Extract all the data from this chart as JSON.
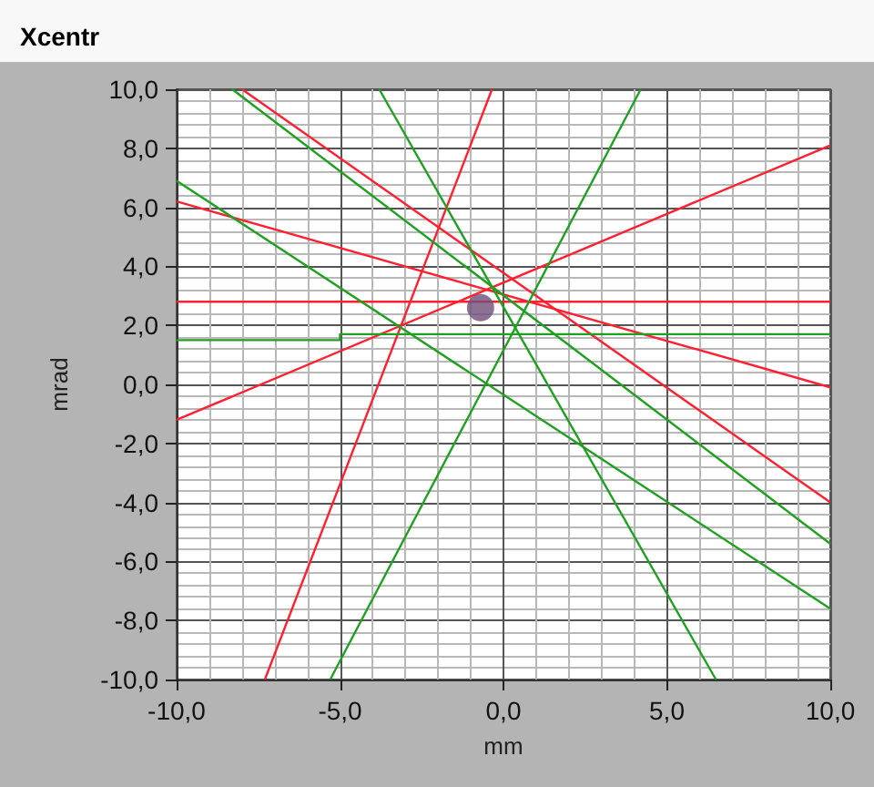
{
  "chart_data": {
    "type": "line",
    "title": "Xcentr",
    "xlabel": "mm",
    "ylabel": "mrad",
    "xlim": [
      -10,
      10
    ],
    "ylim": [
      -10,
      10
    ],
    "xticks": [
      {
        "value": -10,
        "label": "-10,0"
      },
      {
        "value": -5,
        "label": "-5,0"
      },
      {
        "value": 0,
        "label": "0,0"
      },
      {
        "value": 5,
        "label": "5,0"
      },
      {
        "value": 10,
        "label": "10,0"
      }
    ],
    "yticks": [
      {
        "value": -10,
        "label": "-10,0"
      },
      {
        "value": -8,
        "label": "-8,0"
      },
      {
        "value": -6,
        "label": "-6,0"
      },
      {
        "value": -4,
        "label": "-4,0"
      },
      {
        "value": -2,
        "label": "-2,0"
      },
      {
        "value": 0,
        "label": "0,0"
      },
      {
        "value": 2,
        "label": "2,0"
      },
      {
        "value": 4,
        "label": "4,0"
      },
      {
        "value": 6,
        "label": "6,0"
      },
      {
        "value": 8,
        "label": "8,0"
      },
      {
        "value": 10,
        "label": "10,0"
      }
    ],
    "grid": true,
    "marker": "none",
    "line_style": "solid",
    "series": [
      {
        "color": "#ff2030",
        "x": [
          -10,
          10
        ],
        "values": [
          2.8,
          2.8
        ]
      },
      {
        "color": "#ff2030",
        "x": [
          -10,
          10
        ],
        "values": [
          6.2,
          -0.1
        ]
      },
      {
        "color": "#ff2030",
        "x": [
          -8,
          10
        ],
        "values": [
          10,
          -4.0
        ]
      },
      {
        "color": "#ff2030",
        "x": [
          -10,
          10
        ],
        "values": [
          -1.2,
          8.1
        ]
      },
      {
        "color": "#ff2030",
        "x": [
          -0.35,
          -7.3
        ],
        "values": [
          10,
          -10
        ]
      },
      {
        "color": "#20a020",
        "x": [
          -10,
          -5,
          -5,
          10
        ],
        "values": [
          1.5,
          1.5,
          1.7,
          1.7
        ]
      },
      {
        "color": "#20a020",
        "x": [
          -8.3,
          10
        ],
        "values": [
          10,
          -5.4
        ]
      },
      {
        "color": "#20a020",
        "x": [
          -10,
          10
        ],
        "values": [
          6.9,
          -7.6
        ]
      },
      {
        "color": "#20a020",
        "x": [
          -3.8,
          6.5
        ],
        "values": [
          10,
          -10
        ]
      },
      {
        "color": "#20a020",
        "x": [
          -5.3,
          4.2
        ],
        "values": [
          -10,
          10
        ]
      },
      {
        "type": "scatter",
        "marker": "circle",
        "color": "#6e4f7a",
        "x": [
          -0.7
        ],
        "values": [
          2.6
        ]
      }
    ]
  }
}
